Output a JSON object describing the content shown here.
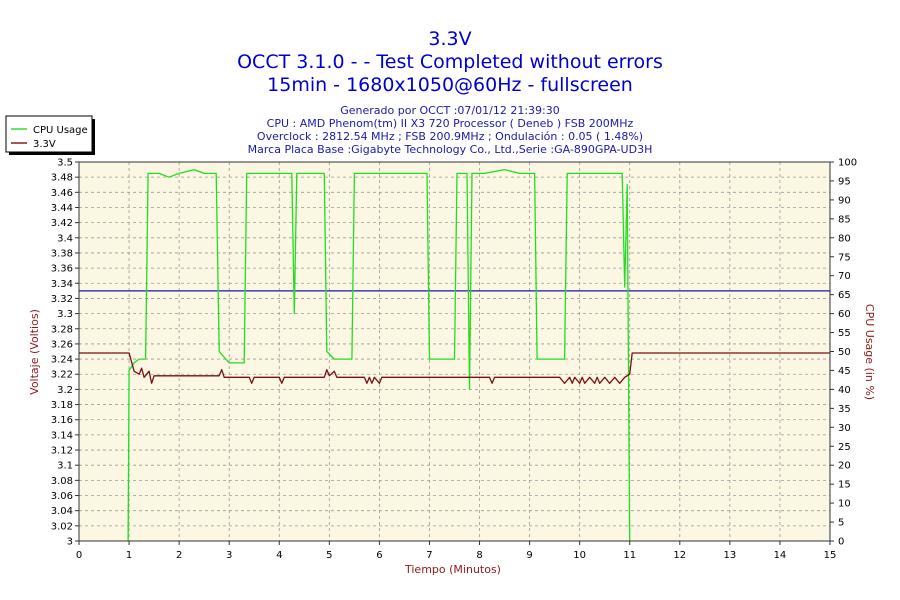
{
  "chart_data": {
    "type": "line",
    "title": "3.3V",
    "subtitle_lines": [
      "OCCT 3.1.0 -  - Test Completed without errors",
      "15min - 1680x1050@60Hz - fullscreen"
    ],
    "info_lines": [
      "Generado por OCCT :07/01/12 21:39:30",
      "CPU : AMD Phenom(tm) II X3 720 Processor ( Deneb ) FSB 200MHz",
      "Overclock : 2812.54 MHz ; FSB 200.9MHz ; Ondulación : 0.05 ( 1.48%)",
      "Marca Placa Base :Gigabyte Technology Co., Ltd.,Serie :GA-890GPA-UD3H"
    ],
    "xlabel": "Tiempo (Minutos)",
    "ylabel": "Voltaje (Voltios)",
    "y2label": "CPU Usage (in %)",
    "xlim": [
      0,
      15
    ],
    "ylim": [
      3.0,
      3.5
    ],
    "y2lim": [
      0,
      100
    ],
    "x_ticks": [
      "0",
      "1",
      "2",
      "3",
      "4",
      "5",
      "6",
      "7",
      "8",
      "9",
      "10",
      "11",
      "12",
      "13",
      "14",
      "15"
    ],
    "y_ticks": [
      "3",
      "3.02",
      "3.04",
      "3.06",
      "3.08",
      "3.1",
      "3.12",
      "3.14",
      "3.16",
      "3.18",
      "3.2",
      "3.22",
      "3.24",
      "3.26",
      "3.28",
      "3.3",
      "3.32",
      "3.34",
      "3.36",
      "3.38",
      "3.4",
      "3.42",
      "3.44",
      "3.46",
      "3.48",
      "3.5"
    ],
    "y2_ticks": [
      "0",
      "5",
      "10",
      "15",
      "20",
      "25",
      "30",
      "35",
      "40",
      "45",
      "50",
      "55",
      "60",
      "65",
      "70",
      "75",
      "80",
      "85",
      "90",
      "95",
      "100"
    ],
    "grid": true,
    "legend_position": "top-left",
    "reference_line": {
      "y": 3.33,
      "color": "#1a1a9e"
    },
    "colors": {
      "plot_bg": "#fbf7e3",
      "grid": "#9a9a9a",
      "cpu": "#22dd22",
      "voltage": "#7a1010"
    },
    "series": [
      {
        "name": "CPU Usage",
        "axis": "right",
        "color": "#22dd22",
        "points": [
          [
            0.98,
            0
          ],
          [
            1.0,
            45
          ],
          [
            1.1,
            47
          ],
          [
            1.2,
            48
          ],
          [
            1.3,
            48
          ],
          [
            1.33,
            48
          ],
          [
            1.38,
            97
          ],
          [
            1.6,
            97
          ],
          [
            1.8,
            96
          ],
          [
            2.0,
            97
          ],
          [
            2.3,
            98
          ],
          [
            2.5,
            97
          ],
          [
            2.74,
            97
          ],
          [
            2.8,
            50
          ],
          [
            3.0,
            47
          ],
          [
            3.2,
            47
          ],
          [
            3.3,
            47
          ],
          [
            3.35,
            97
          ],
          [
            3.6,
            97
          ],
          [
            3.9,
            97
          ],
          [
            4.25,
            97
          ],
          [
            4.3,
            60
          ],
          [
            4.35,
            97
          ],
          [
            4.6,
            97
          ],
          [
            4.9,
            97
          ],
          [
            4.95,
            50
          ],
          [
            5.1,
            48
          ],
          [
            5.3,
            48
          ],
          [
            5.45,
            48
          ],
          [
            5.5,
            97
          ],
          [
            5.8,
            97
          ],
          [
            6.2,
            97
          ],
          [
            6.5,
            97
          ],
          [
            6.95,
            97
          ],
          [
            7.0,
            48
          ],
          [
            7.3,
            48
          ],
          [
            7.5,
            48
          ],
          [
            7.55,
            97
          ],
          [
            7.75,
            97
          ],
          [
            7.8,
            40
          ],
          [
            7.85,
            97
          ],
          [
            8.1,
            97
          ],
          [
            8.5,
            98
          ],
          [
            8.8,
            97
          ],
          [
            9.1,
            97
          ],
          [
            9.15,
            48
          ],
          [
            9.4,
            48
          ],
          [
            9.7,
            48
          ],
          [
            9.75,
            97
          ],
          [
            10.1,
            97
          ],
          [
            10.5,
            97
          ],
          [
            10.85,
            97
          ],
          [
            10.9,
            67
          ],
          [
            10.95,
            94
          ],
          [
            11.0,
            0
          ]
        ]
      },
      {
        "name": "3.3V",
        "axis": "left",
        "color": "#7a1010",
        "points": [
          [
            0.0,
            3.248
          ],
          [
            1.0,
            3.248
          ],
          [
            1.05,
            3.236
          ],
          [
            1.1,
            3.224
          ],
          [
            1.2,
            3.22
          ],
          [
            1.25,
            3.228
          ],
          [
            1.3,
            3.216
          ],
          [
            1.4,
            3.224
          ],
          [
            1.45,
            3.208
          ],
          [
            1.5,
            3.218
          ],
          [
            2.8,
            3.218
          ],
          [
            2.85,
            3.226
          ],
          [
            2.9,
            3.216
          ],
          [
            3.4,
            3.216
          ],
          [
            3.45,
            3.208
          ],
          [
            3.5,
            3.216
          ],
          [
            4.0,
            3.216
          ],
          [
            4.05,
            3.208
          ],
          [
            4.1,
            3.216
          ],
          [
            4.9,
            3.216
          ],
          [
            4.95,
            3.226
          ],
          [
            5.0,
            3.218
          ],
          [
            5.1,
            3.224
          ],
          [
            5.15,
            3.216
          ],
          [
            5.7,
            3.216
          ],
          [
            5.75,
            3.208
          ],
          [
            5.8,
            3.216
          ],
          [
            5.85,
            3.208
          ],
          [
            5.9,
            3.216
          ],
          [
            6.0,
            3.208
          ],
          [
            6.05,
            3.216
          ],
          [
            8.2,
            3.216
          ],
          [
            8.25,
            3.208
          ],
          [
            8.3,
            3.216
          ],
          [
            9.6,
            3.216
          ],
          [
            9.7,
            3.208
          ],
          [
            9.8,
            3.216
          ],
          [
            9.85,
            3.208
          ],
          [
            9.9,
            3.216
          ],
          [
            10.0,
            3.208
          ],
          [
            10.05,
            3.216
          ],
          [
            10.1,
            3.208
          ],
          [
            10.2,
            3.216
          ],
          [
            10.3,
            3.208
          ],
          [
            10.35,
            3.216
          ],
          [
            10.4,
            3.208
          ],
          [
            10.5,
            3.216
          ],
          [
            10.6,
            3.208
          ],
          [
            10.7,
            3.216
          ],
          [
            10.8,
            3.208
          ],
          [
            10.9,
            3.216
          ],
          [
            11.0,
            3.22
          ],
          [
            11.05,
            3.248
          ],
          [
            15.0,
            3.248
          ]
        ]
      }
    ]
  }
}
